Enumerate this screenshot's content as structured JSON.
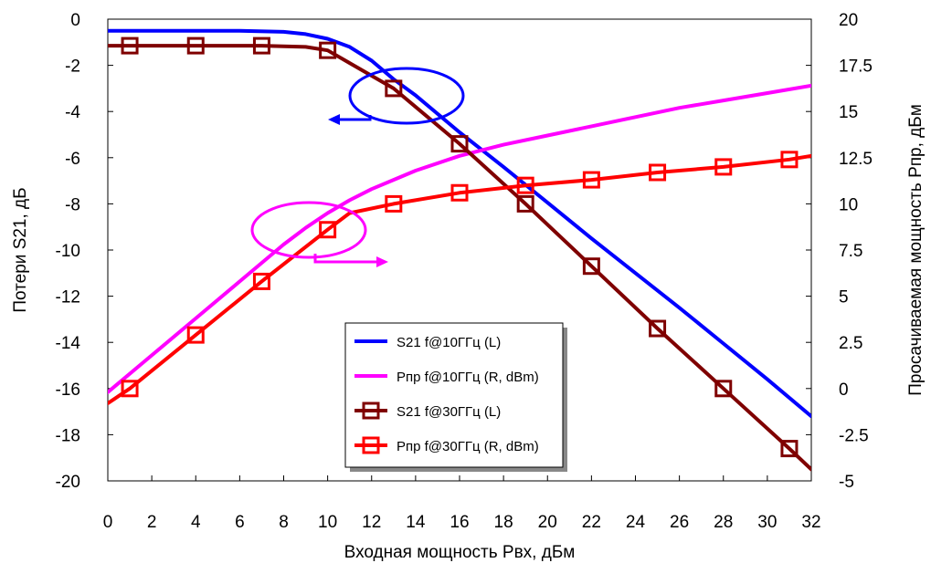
{
  "chart_data": {
    "type": "line",
    "xlabel": "Входная мощность Pвх, дБм",
    "ylabel_left": "Потери S21, дБ",
    "ylabel_right": "Просачиваемая мощность Pпр, дБм",
    "xlim": [
      0,
      32
    ],
    "ylim_left": [
      -20,
      0
    ],
    "ylim_right": [
      -5,
      20
    ],
    "x_ticks": [
      "0",
      "2",
      "4",
      "6",
      "8",
      "10",
      "12",
      "14",
      "16",
      "18",
      "20",
      "22",
      "24",
      "26",
      "28",
      "30",
      "32"
    ],
    "y_left_ticks": [
      "0",
      "-2",
      "-4",
      "-6",
      "-8",
      "-10",
      "-12",
      "-14",
      "-16",
      "-18",
      "-20"
    ],
    "y_right_ticks": [
      "20",
      "17.5",
      "15",
      "12.5",
      "10",
      "7.5",
      "5",
      "2.5",
      "0",
      "-2.5",
      "-5"
    ],
    "grid": false,
    "legend_position": "center-bottom",
    "series": [
      {
        "name": "S21 f@10ГГц (L)",
        "axis": "left",
        "color": "#0000ff",
        "marker": "none",
        "x": [
          0,
          2,
          4,
          6,
          8,
          9,
          10,
          11,
          12,
          13,
          14,
          16,
          18,
          20,
          22,
          24,
          26,
          28,
          30,
          32
        ],
        "y": [
          -0.5,
          -0.5,
          -0.5,
          -0.5,
          -0.55,
          -0.65,
          -0.85,
          -1.2,
          -1.8,
          -2.6,
          -3.3,
          -4.9,
          -6.4,
          -7.95,
          -9.5,
          -11.0,
          -12.5,
          -14.05,
          -15.6,
          -17.2
        ]
      },
      {
        "name": "Pпр f@10ГГц (R, dBm)",
        "axis": "right",
        "color": "#ff00ff",
        "marker": "none",
        "x": [
          0,
          2,
          4,
          6,
          8,
          9,
          10,
          11,
          12,
          13,
          14,
          16,
          18,
          20,
          22,
          24,
          26,
          28,
          30,
          32
        ],
        "y": [
          -0.2,
          1.8,
          3.8,
          5.8,
          7.8,
          8.7,
          9.5,
          10.2,
          10.8,
          11.3,
          11.8,
          12.6,
          13.2,
          13.7,
          14.2,
          14.7,
          15.2,
          15.6,
          16.0,
          16.4
        ]
      },
      {
        "name": "S21 f@30ГГц (L)",
        "axis": "left",
        "color": "#7f0000",
        "marker": "square",
        "x": [
          0,
          1,
          4,
          7,
          9,
          10,
          11,
          13,
          16,
          19,
          22,
          25,
          28,
          31,
          32
        ],
        "y": [
          -1.15,
          -1.15,
          -1.15,
          -1.15,
          -1.2,
          -1.35,
          -1.9,
          -3.0,
          -5.4,
          -8.0,
          -10.7,
          -13.4,
          -16.0,
          -18.6,
          -19.5
        ]
      },
      {
        "name": "Pпр f@30ГГц (R, dBm)",
        "axis": "right",
        "color": "#ff0000",
        "marker": "square",
        "x": [
          0,
          1,
          4,
          7,
          10,
          11,
          13,
          16,
          19,
          22,
          25,
          28,
          31,
          32
        ],
        "y": [
          -0.8,
          0.0,
          2.9,
          5.8,
          8.6,
          9.5,
          10.0,
          10.6,
          11.0,
          11.3,
          11.7,
          12.0,
          12.4,
          12.6
        ]
      }
    ],
    "markers": {
      "S21 f@30ГГц (L)": {
        "x": [
          1,
          4,
          7,
          10,
          13,
          16,
          19,
          22,
          25,
          28,
          31
        ],
        "y": [
          -1.15,
          -1.15,
          -1.15,
          -1.35,
          -3.0,
          -5.4,
          -8.0,
          -10.7,
          -13.4,
          -16.0,
          -18.6
        ]
      },
      "Pпр f@30ГГц (R, dBm)": {
        "x": [
          1,
          4,
          7,
          10,
          13,
          16,
          19,
          22,
          25,
          28,
          31
        ],
        "y": [
          0.0,
          2.9,
          5.8,
          8.6,
          10.0,
          10.6,
          11.0,
          11.3,
          11.7,
          12.0,
          12.4
        ]
      }
    },
    "annotations": [
      {
        "type": "ellipse-arrow",
        "target_axis": "left",
        "color": "#0000ff",
        "direction": "left"
      },
      {
        "type": "ellipse-arrow",
        "target_axis": "right",
        "color": "#ff00ff",
        "direction": "right"
      }
    ]
  }
}
